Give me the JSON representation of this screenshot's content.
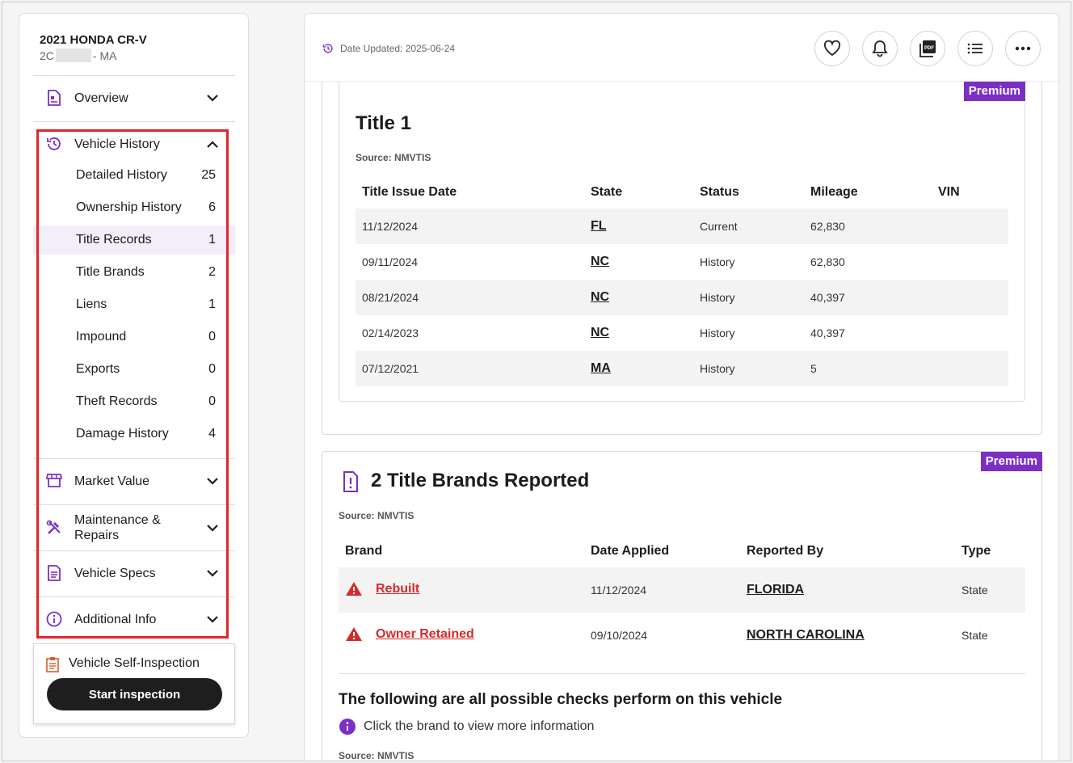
{
  "vehicle": {
    "title": "2021 HONDA CR-V",
    "vin_prefix": "2C",
    "state_suffix": "- MA"
  },
  "sidebar": {
    "overview": {
      "label": "Overview",
      "icon": "document-icon"
    },
    "vehicle_history": {
      "label": "Vehicle History",
      "icon": "history-icon",
      "items": [
        {
          "label": "Detailed History",
          "count": "25"
        },
        {
          "label": "Ownership History",
          "count": "6"
        },
        {
          "label": "Title Records",
          "count": "1"
        },
        {
          "label": "Title Brands",
          "count": "2"
        },
        {
          "label": "Liens",
          "count": "1"
        },
        {
          "label": "Impound",
          "count": "0"
        },
        {
          "label": "Exports",
          "count": "0"
        },
        {
          "label": "Theft Records",
          "count": "0"
        },
        {
          "label": "Damage History",
          "count": "4"
        }
      ]
    },
    "market_value": {
      "label": "Market Value",
      "icon": "store-icon"
    },
    "maintenance": {
      "label_line1": "Maintenance &",
      "label_line2": "Repairs",
      "icon": "tools-icon"
    },
    "specs": {
      "label": "Vehicle Specs",
      "icon": "specs-icon"
    },
    "additional": {
      "label": "Additional Info",
      "icon": "info-icon"
    },
    "inspection": {
      "label": "Vehicle Self-Inspection",
      "button": "Start inspection"
    }
  },
  "topbar": {
    "date_updated": "Date Updated: 2025-06-24",
    "tools": [
      "heart-icon",
      "bell-icon",
      "pdf-icon",
      "list-icon",
      "more-icon"
    ]
  },
  "title_card": {
    "badge": "Premium",
    "title": "Title 1",
    "source": "Source: NMVTIS",
    "headers": [
      "Title Issue Date",
      "State",
      "Status",
      "Mileage",
      "VIN"
    ],
    "rows": [
      {
        "date": "11/12/2024",
        "state": "FL",
        "status": "Current",
        "mileage": "62,830",
        "vin": ""
      },
      {
        "date": "09/11/2024",
        "state": "NC",
        "status": "History",
        "mileage": "62,830",
        "vin": ""
      },
      {
        "date": "08/21/2024",
        "state": "NC",
        "status": "History",
        "mileage": "40,397",
        "vin": ""
      },
      {
        "date": "02/14/2023",
        "state": "NC",
        "status": "History",
        "mileage": "40,397",
        "vin": ""
      },
      {
        "date": "07/12/2021",
        "state": "MA",
        "status": "History",
        "mileage": "5",
        "vin": ""
      }
    ]
  },
  "brands_card": {
    "badge": "Premium",
    "title": "2 Title Brands Reported",
    "source": "Source: NMVTIS",
    "headers": [
      "Brand",
      "Date Applied",
      "Reported By",
      "Type"
    ],
    "rows": [
      {
        "brand": "Rebuilt",
        "date": "11/12/2024",
        "reported_by": "FLORIDA",
        "type": "State"
      },
      {
        "brand": "Owner Retained",
        "date": "09/10/2024",
        "reported_by": "NORTH CAROLINA",
        "type": "State"
      }
    ],
    "checks_title": "The following are all possible checks perform on this vehicle",
    "info_text": "Click the brand to view more information",
    "source2": "Source: NMVTIS"
  },
  "colors": {
    "accent": "#7b2fc4",
    "highlight": "#e2252c",
    "warning": "#d52b2b"
  }
}
